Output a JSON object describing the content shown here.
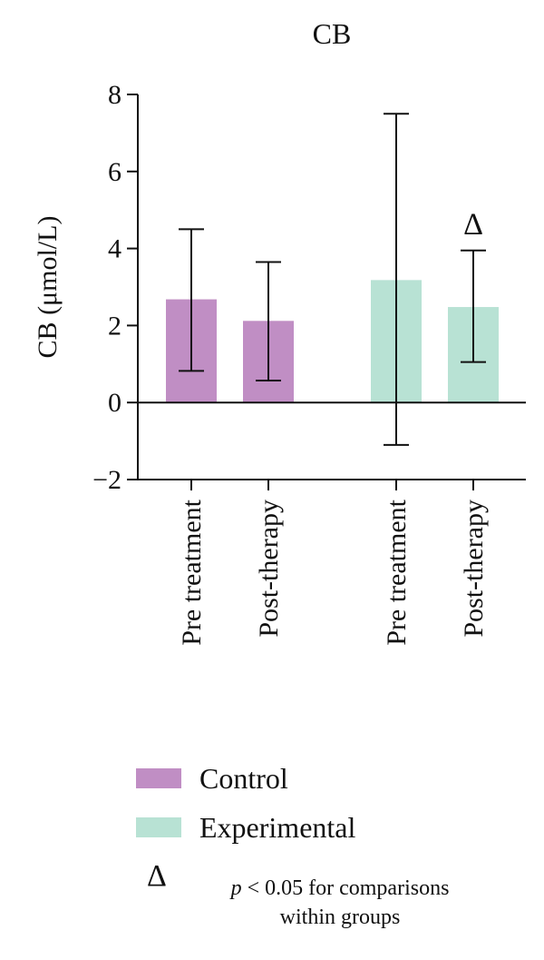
{
  "chart_data": {
    "type": "bar",
    "title": "CB",
    "ylabel": "CB (μmol/L)",
    "ylim": [
      -2,
      8
    ],
    "yticks": [
      -2,
      0,
      2,
      4,
      6,
      8
    ],
    "ytick_labels": [
      "−2",
      "0",
      "2",
      "4",
      "6",
      "8"
    ],
    "categories": [
      "Pre treatment",
      "Post-therapy",
      "Pre treatment",
      "Post-therapy"
    ],
    "groups": [
      "Control",
      "Control",
      "Experimental",
      "Experimental"
    ],
    "values": [
      2.68,
      2.12,
      3.18,
      2.48
    ],
    "error_low": [
      0.82,
      0.57,
      -1.1,
      1.05
    ],
    "error_high": [
      4.5,
      3.65,
      7.5,
      3.95
    ],
    "annotations": [
      "",
      "",
      "",
      "Δ"
    ],
    "colors": {
      "Control": "#c08ec4",
      "Experimental": "#b8e2d4"
    },
    "legend": [
      {
        "name": "Control",
        "color": "#c08ec4"
      },
      {
        "name": "Experimental",
        "color": "#b8e2d4"
      }
    ],
    "grid": false
  },
  "footnote": {
    "symbol": "Δ",
    "p": "p",
    "text_line1": " < 0.05 for comparisons",
    "text_line2": "within groups"
  }
}
